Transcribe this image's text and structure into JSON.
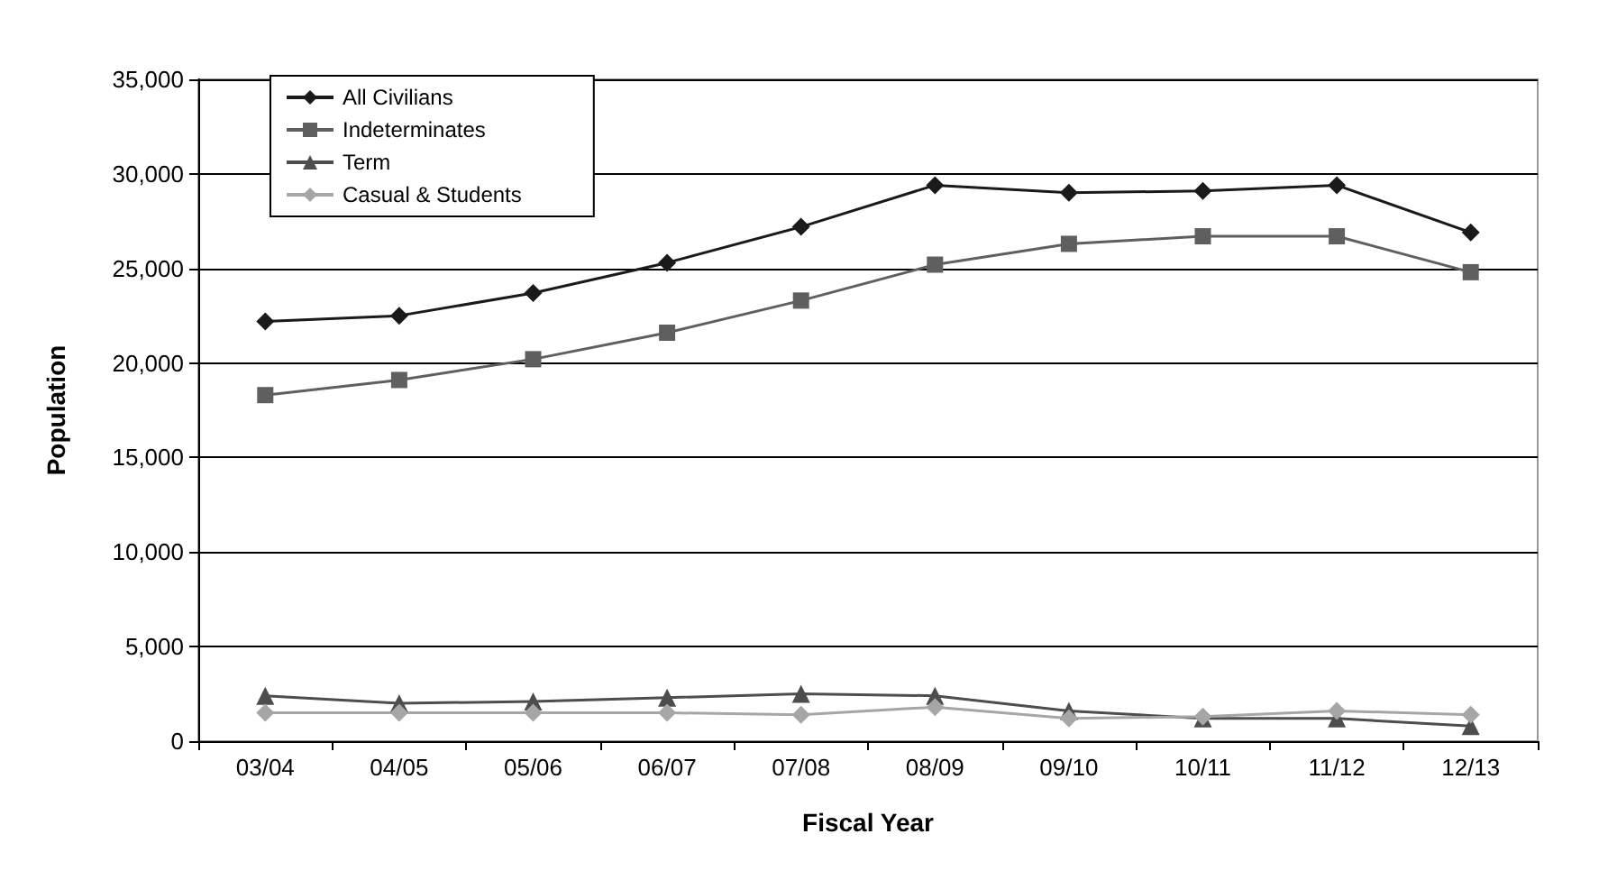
{
  "chart_data": {
    "type": "line",
    "xlabel": "Fiscal Year",
    "ylabel": "Population",
    "categories": [
      "03/04",
      "04/05",
      "05/06",
      "06/07",
      "07/08",
      "08/09",
      "09/10",
      "10/11",
      "11/12",
      "12/13"
    ],
    "series": [
      {
        "name": "All Civilians",
        "color": "#1a1a1a",
        "marker": "diamond",
        "values": [
          22200,
          22500,
          23700,
          25300,
          27200,
          29400,
          29000,
          29100,
          29400,
          26900
        ]
      },
      {
        "name": "Indeterminates",
        "color": "#5f5f5f",
        "marker": "square",
        "values": [
          18300,
          19100,
          20200,
          21600,
          23300,
          25200,
          26300,
          26700,
          26700,
          24800
        ]
      },
      {
        "name": "Term",
        "color": "#4d4d4d",
        "marker": "triangle",
        "values": [
          2400,
          2000,
          2100,
          2300,
          2500,
          2400,
          1600,
          1200,
          1200,
          800
        ]
      },
      {
        "name": "Casual & Students",
        "color": "#a6a6a6",
        "marker": "diamond",
        "values": [
          1500,
          1500,
          1500,
          1500,
          1400,
          1800,
          1200,
          1300,
          1600,
          1400
        ]
      }
    ],
    "ylim": [
      0,
      35000
    ],
    "yticks": [
      0,
      {
        "value": 5000,
        "label": "5,000"
      },
      {
        "value": 10000,
        "label": "10,000"
      },
      {
        "value": 15000,
        "label": "15,000"
      },
      {
        "value": 20000,
        "label": "20,000"
      },
      {
        "value": 25000,
        "label": "25,000"
      },
      {
        "value": 30000,
        "label": "30,000"
      },
      {
        "value": 35000,
        "label": "35,000"
      }
    ],
    "grid": "y",
    "legend": "top left",
    "line_style": "solid"
  }
}
